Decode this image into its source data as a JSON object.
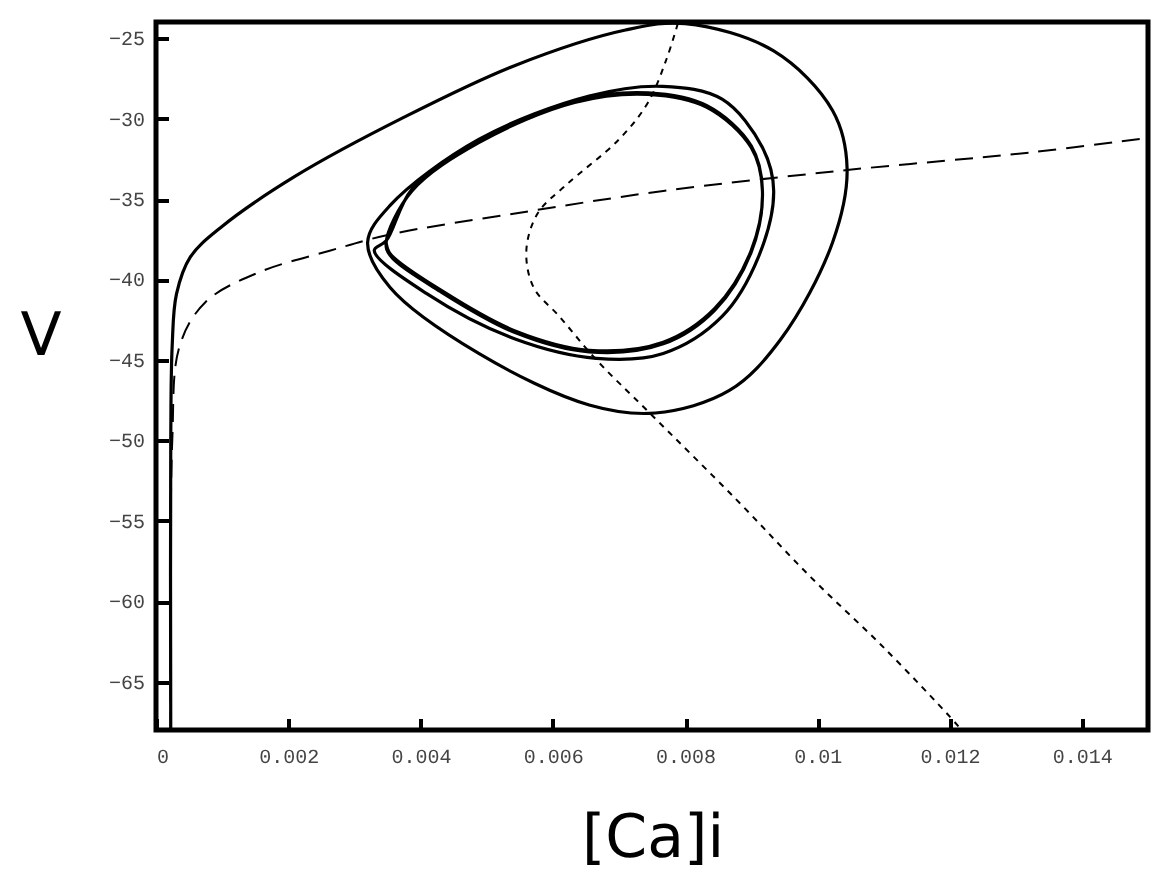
{
  "chart_data": {
    "type": "line",
    "xlabel": "[Ca]i",
    "ylabel": "V",
    "xlim": [
      0,
      0.015
    ],
    "ylim": [
      -68,
      -24
    ],
    "xticks": [
      0,
      0.002,
      0.004,
      0.006,
      0.008,
      0.01,
      0.012,
      0.014
    ],
    "yticks": [
      -65,
      -60,
      -55,
      -50,
      -45,
      -40,
      -35,
      -30,
      -25
    ],
    "grid": false,
    "series": [
      {
        "color": "#000000",
        "line_style": "solid",
        "x": [
          0.000223,
          0.000223,
          0.000245,
          0.00031,
          0.00052,
          0.00097,
          0.0021,
          0.00376,
          0.00543,
          0.0071,
          0.008,
          0.00934,
          0.01023,
          0.01045,
          0.01023,
          0.00945,
          0.00867,
          0.00755,
          0.00655,
          0.00488,
          0.00354,
          0.0032,
          0.00354,
          0.00488,
          0.00655,
          0.00766,
          0.00856,
          0.00917,
          0.00934,
          0.00911,
          0.00856,
          0.00767,
          0.00666,
          0.00543,
          0.0041,
          0.0033,
          0.00348,
          0.00387,
          0.00488,
          0.00633,
          0.00744,
          0.00833,
          0.009,
          0.00917,
          0.009,
          0.00845,
          0.00767,
          0.00655,
          0.00543,
          0.00432,
          0.00354,
          0.00348,
          0.00387,
          0.00488,
          0.00633,
          0.00744,
          0.00833,
          0.009,
          0.00917,
          0.009,
          0.00845,
          0.00767,
          0.00655,
          0.00543,
          0.00432,
          0.00354,
          0.00348
        ],
        "values": [
          -68,
          -50.1,
          -44.1,
          -40.9,
          -38.6,
          -36.8,
          -33.6,
          -29.9,
          -26.7,
          -24.5,
          -24.1,
          -25.8,
          -29.5,
          -33.1,
          -37.7,
          -43.7,
          -46.9,
          -48.3,
          -47.8,
          -44.6,
          -40.5,
          -37.7,
          -35.4,
          -31.3,
          -28.6,
          -28.0,
          -28.8,
          -31.8,
          -34.5,
          -38.6,
          -42.3,
          -44.6,
          -44.9,
          -43.7,
          -40.9,
          -38.2,
          -37.6,
          -34.4,
          -31.4,
          -28.9,
          -28.4,
          -29.2,
          -31.7,
          -34.5,
          -38.3,
          -41.9,
          -44.0,
          -44.5,
          -43.3,
          -40.8,
          -38.5,
          -37.7,
          -34.5,
          -31.5,
          -29.0,
          -28.5,
          -29.3,
          -31.8,
          -34.5,
          -38.2,
          -41.8,
          -43.9,
          -44.4,
          -43.2,
          -40.7,
          -38.4,
          -37.7
        ]
      },
      {
        "color": "#000000",
        "line_style": "dashed",
        "x": [
          0.000223,
          0.000245,
          0.00036,
          0.00075,
          0.00153,
          0.00264,
          0.00354,
          0.00543,
          0.00767,
          0.01045,
          0.01324,
          0.015
        ],
        "values": [
          -68,
          -50.1,
          -44.1,
          -41.4,
          -39.6,
          -38.2,
          -37.2,
          -35.9,
          -34.5,
          -33.2,
          -32.1,
          -31.2
        ]
      },
      {
        "color": "#000000",
        "line_style": "dotted",
        "x": [
          0.00789,
          0.00772,
          0.00744,
          0.007,
          0.00621,
          0.00577,
          0.0056,
          0.00571,
          0.0061,
          0.00666,
          0.00744,
          0.00878,
          0.0099,
          0.01101,
          0.01201,
          0.01218
        ],
        "values": [
          -24.1,
          -26.3,
          -29.0,
          -31.3,
          -34.1,
          -35.9,
          -38.2,
          -40.5,
          -42.3,
          -45.0,
          -48.2,
          -53.7,
          -58.5,
          -62.9,
          -67.2,
          -68
        ]
      }
    ]
  }
}
